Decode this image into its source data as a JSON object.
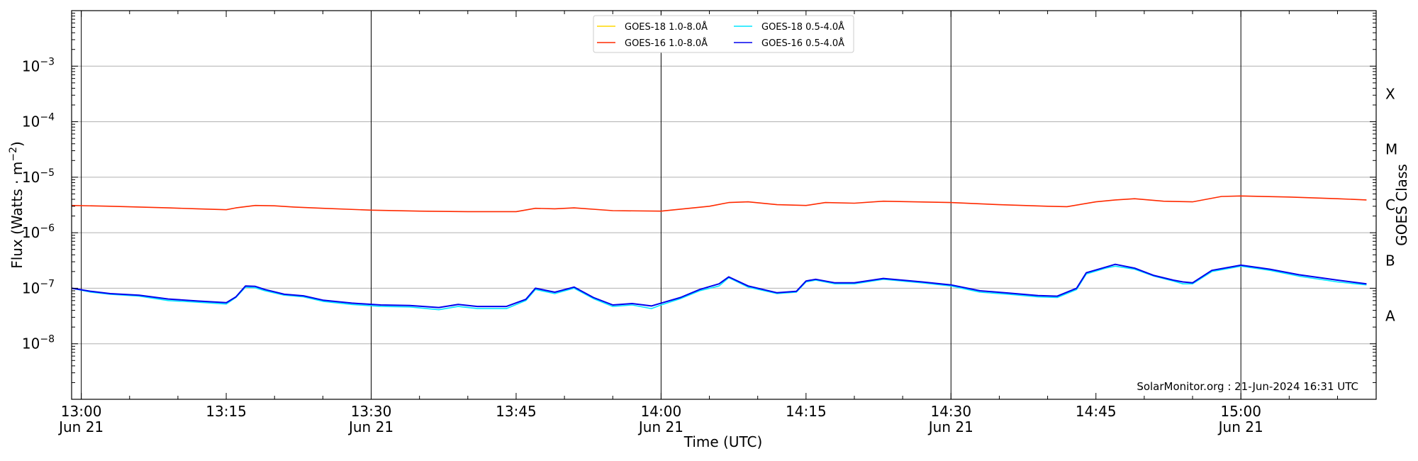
{
  "chart_data": {
    "type": "line",
    "ylabel_main": "Flux (Watts · m",
    "ylabel_sup": "−2",
    "ylabel_close": ")",
    "xlabel": "Time (UTC)",
    "right_label": "GOES Class",
    "credit": "SolarMonitor.org : 21-Jun-2024 16:31 UTC",
    "y_scale": "log",
    "ylim": [
      1e-09,
      0.01
    ],
    "xlim": [
      "12:59:00",
      "15:14:00"
    ],
    "grid": "horizontal at decades, vertical at 30-minute marks",
    "legend_position": "top-center",
    "x_ticks": [
      {
        "t": "13:00",
        "label": "13:00",
        "sub": "Jun 21"
      },
      {
        "t": "13:15",
        "label": "13:15",
        "sub": ""
      },
      {
        "t": "13:30",
        "label": "13:30",
        "sub": "Jun 21"
      },
      {
        "t": "13:45",
        "label": "13:45",
        "sub": ""
      },
      {
        "t": "14:00",
        "label": "14:00",
        "sub": "Jun 21"
      },
      {
        "t": "14:15",
        "label": "14:15",
        "sub": ""
      },
      {
        "t": "14:30",
        "label": "14:30",
        "sub": "Jun 21"
      },
      {
        "t": "14:45",
        "label": "14:45",
        "sub": ""
      },
      {
        "t": "15:00",
        "label": "15:00",
        "sub": "Jun 21"
      }
    ],
    "vertical_lines": [
      "13:00",
      "13:30",
      "14:00",
      "14:30",
      "15:00"
    ],
    "y_ticks": [
      {
        "exp": -8,
        "base": "10",
        "sup": "−8"
      },
      {
        "exp": -7,
        "base": "10",
        "sup": "−7"
      },
      {
        "exp": -6,
        "base": "10",
        "sup": "−6"
      },
      {
        "exp": -5,
        "base": "10",
        "sup": "−5"
      },
      {
        "exp": -4,
        "base": "10",
        "sup": "−4"
      },
      {
        "exp": -3,
        "base": "10",
        "sup": "−3"
      }
    ],
    "goes_classes": [
      {
        "label": "A",
        "flux": 3.16e-08
      },
      {
        "label": "B",
        "flux": 3.16e-07
      },
      {
        "label": "C",
        "flux": 3.16e-06
      },
      {
        "label": "M",
        "flux": 3.16e-05
      },
      {
        "label": "X",
        "flux": 0.000316
      }
    ],
    "legend": [
      {
        "name": "GOES-18 1.0-8.0Å",
        "color": "#ffd700"
      },
      {
        "name": "GOES-18 0.5-4.0Å",
        "color": "#00e5ff"
      },
      {
        "name": "GOES-16 1.0-8.0Å",
        "color": "#ff2a00"
      },
      {
        "name": "GOES-16 0.5-4.0Å",
        "color": "#0000ee"
      }
    ],
    "series": [
      {
        "name": "GOES-16 1.0-8.0Å",
        "color": "#ff2a00",
        "x": [
          "12:59:00",
          "13:03:00",
          "13:06:00",
          "13:09:00",
          "13:12:00",
          "13:15:00",
          "13:16:00",
          "13:18:00",
          "13:20:00",
          "13:22:00",
          "13:25:00",
          "13:30:00",
          "13:35:00",
          "13:40:00",
          "13:45:00",
          "13:47:00",
          "13:49:00",
          "13:51:00",
          "13:55:00",
          "14:00:00",
          "14:05:00",
          "14:07:00",
          "14:09:00",
          "14:12:00",
          "14:15:00",
          "14:17:00",
          "14:20:00",
          "14:23:00",
          "14:30:00",
          "14:35:00",
          "14:40:00",
          "14:42:00",
          "14:45:00",
          "14:47:00",
          "14:49:00",
          "14:52:00",
          "14:55:00",
          "14:58:00",
          "15:00:00",
          "15:05:00",
          "15:10:00",
          "15:13:00"
        ],
        "values": [
          3.1e-06,
          3e-06,
          2.9e-06,
          2.8e-06,
          2.7e-06,
          2.6e-06,
          2.8e-06,
          3.1e-06,
          3.05e-06,
          2.9e-06,
          2.75e-06,
          2.55e-06,
          2.45e-06,
          2.4e-06,
          2.4e-06,
          2.75e-06,
          2.7e-06,
          2.8e-06,
          2.5e-06,
          2.45e-06,
          3e-06,
          3.5e-06,
          3.6e-06,
          3.2e-06,
          3.1e-06,
          3.5e-06,
          3.4e-06,
          3.7e-06,
          3.5e-06,
          3.2e-06,
          3e-06,
          2.95e-06,
          3.6e-06,
          3.9e-06,
          4.1e-06,
          3.7e-06,
          3.6e-06,
          4.5e-06,
          4.6e-06,
          4.4e-06,
          4.1e-06,
          3.9e-06
        ]
      },
      {
        "name": "GOES-18 0.5-4.0Å",
        "color": "#00e5ff",
        "x": [
          "12:59:00",
          "13:01:00",
          "13:03:00",
          "13:06:00",
          "13:09:00",
          "13:12:00",
          "13:15:00",
          "13:16:00",
          "13:17:00",
          "13:18:00",
          "13:19:00",
          "13:21:00",
          "13:23:00",
          "13:25:00",
          "13:28:00",
          "13:31:00",
          "13:34:00",
          "13:37:00",
          "13:39:00",
          "13:41:00",
          "13:44:00",
          "13:46:00",
          "13:47:00",
          "13:49:00",
          "13:51:00",
          "13:53:00",
          "13:55:00",
          "13:57:00",
          "13:59:00",
          "14:00:00",
          "14:02:00",
          "14:04:00",
          "14:06:00",
          "14:07:00",
          "14:09:00",
          "14:12:00",
          "14:14:00",
          "14:15:00",
          "14:16:00",
          "14:18:00",
          "14:20:00",
          "14:23:00",
          "14:27:00",
          "14:30:00",
          "14:33:00",
          "14:36:00",
          "14:39:00",
          "14:41:00",
          "14:43:00",
          "14:44:00",
          "14:46:00",
          "14:47:00",
          "14:49:00",
          "14:51:00",
          "14:53:00",
          "14:54:00",
          "14:55:00",
          "14:57:00",
          "15:00:00",
          "15:03:00",
          "15:06:00",
          "15:10:00",
          "15:13:00"
        ],
        "values": [
          1e-07,
          8.5e-08,
          7.8e-08,
          7.2e-08,
          6e-08,
          5.6e-08,
          5.2e-08,
          6.8e-08,
          1.05e-07,
          1.02e-07,
          9e-08,
          7.5e-08,
          7e-08,
          5.8e-08,
          5.1e-08,
          4.7e-08,
          4.6e-08,
          4.1e-08,
          4.7e-08,
          4.3e-08,
          4.3e-08,
          6e-08,
          9.5e-08,
          8e-08,
          1e-07,
          6.5e-08,
          4.7e-08,
          5e-08,
          4.3e-08,
          5e-08,
          6.5e-08,
          9e-08,
          1.1e-07,
          1.55e-07,
          1.05e-07,
          8e-08,
          8.5e-08,
          1.3e-07,
          1.4e-07,
          1.2e-07,
          1.2e-07,
          1.45e-07,
          1.25e-07,
          1.1e-07,
          8.5e-08,
          7.8e-08,
          7e-08,
          6.8e-08,
          9.5e-08,
          1.8e-07,
          2.3e-07,
          2.5e-07,
          2.2e-07,
          1.65e-07,
          1.35e-07,
          1.2e-07,
          1.2e-07,
          2e-07,
          2.5e-07,
          2.1e-07,
          1.65e-07,
          1.3e-07,
          1.15e-07
        ]
      },
      {
        "name": "GOES-16 0.5-4.0Å",
        "color": "#0000ee",
        "x": [
          "12:59:00",
          "13:01:00",
          "13:03:00",
          "13:06:00",
          "13:09:00",
          "13:12:00",
          "13:15:00",
          "13:16:00",
          "13:17:00",
          "13:18:00",
          "13:19:00",
          "13:21:00",
          "13:23:00",
          "13:25:00",
          "13:28:00",
          "13:31:00",
          "13:34:00",
          "13:37:00",
          "13:39:00",
          "13:41:00",
          "13:44:00",
          "13:46:00",
          "13:47:00",
          "13:49:00",
          "13:51:00",
          "13:53:00",
          "13:55:00",
          "13:57:00",
          "13:59:00",
          "14:00:00",
          "14:02:00",
          "14:04:00",
          "14:06:00",
          "14:07:00",
          "14:09:00",
          "14:12:00",
          "14:14:00",
          "14:15:00",
          "14:16:00",
          "14:18:00",
          "14:20:00",
          "14:23:00",
          "14:27:00",
          "14:30:00",
          "14:33:00",
          "14:36:00",
          "14:39:00",
          "14:41:00",
          "14:43:00",
          "14:44:00",
          "14:46:00",
          "14:47:00",
          "14:49:00",
          "14:51:00",
          "14:53:00",
          "14:54:00",
          "14:55:00",
          "14:57:00",
          "15:00:00",
          "15:03:00",
          "15:06:00",
          "15:10:00",
          "15:13:00"
        ],
        "values": [
          1e-07,
          8.8e-08,
          8e-08,
          7.5e-08,
          6.4e-08,
          5.9e-08,
          5.5e-08,
          7e-08,
          1.1e-07,
          1.08e-07,
          9.5e-08,
          7.8e-08,
          7.3e-08,
          6.1e-08,
          5.4e-08,
          5e-08,
          4.9e-08,
          4.5e-08,
          5.1e-08,
          4.7e-08,
          4.7e-08,
          6.3e-08,
          1e-07,
          8.5e-08,
          1.05e-07,
          6.8e-08,
          5e-08,
          5.3e-08,
          4.8e-08,
          5.4e-08,
          6.8e-08,
          9.5e-08,
          1.2e-07,
          1.6e-07,
          1.1e-07,
          8.3e-08,
          8.8e-08,
          1.35e-07,
          1.45e-07,
          1.25e-07,
          1.25e-07,
          1.5e-07,
          1.3e-07,
          1.15e-07,
          9e-08,
          8.2e-08,
          7.4e-08,
          7.2e-08,
          1e-07,
          1.9e-07,
          2.4e-07,
          2.7e-07,
          2.3e-07,
          1.7e-07,
          1.4e-07,
          1.3e-07,
          1.25e-07,
          2.1e-07,
          2.6e-07,
          2.2e-07,
          1.75e-07,
          1.4e-07,
          1.2e-07
        ]
      }
    ]
  }
}
